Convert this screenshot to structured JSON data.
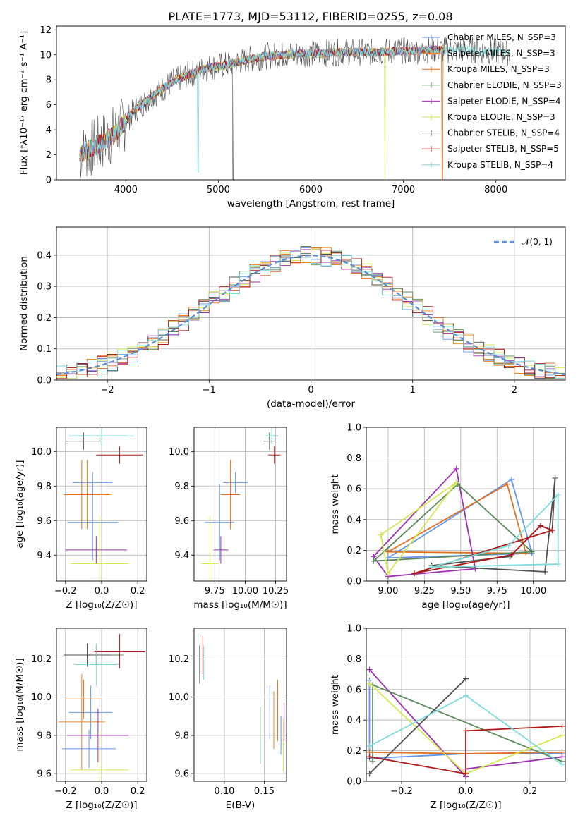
{
  "figure": {
    "title": "PLATE=1773, MJD=53112, FIBERID=0255, z=0.08"
  },
  "series_styles": [
    {
      "name": "Chabrier MILES, N_SSP=3",
      "color": "#6495ed"
    },
    {
      "name": "Salpeter MILES, N_SSP=3",
      "color": "#ff7f0e"
    },
    {
      "name": "Kroupa MILES, N_SSP=3",
      "color": "#e07020"
    },
    {
      "name": "Chabrier ELODIE, N_SSP=3",
      "color": "#5a8a5a"
    },
    {
      "name": "Salpeter ELODIE, N_SSP=4",
      "color": "#9b30b0"
    },
    {
      "name": "Kroupa ELODIE, N_SSP=3",
      "color": "#d4e850"
    },
    {
      "name": "Chabrier STELIB, N_SSP=4",
      "color": "#505050"
    },
    {
      "name": "Salpeter STELIB, N_SSP=5",
      "color": "#b01818"
    },
    {
      "name": "Kroupa STELIB, N_SSP=4",
      "color": "#7fdcdc"
    }
  ],
  "chart_data": [
    {
      "id": "spectrum",
      "type": "line",
      "title": "PLATE=1773, MJD=53112, FIBERID=0255, z=0.08",
      "xlabel": "wavelength [Angstrom, rest frame]",
      "ylabel": "Flux [fλ10⁻¹⁷ erg cm⁻² s⁻¹ A⁻¹]",
      "xlim": [
        3250,
        8750
      ],
      "ylim": [
        0,
        12.3
      ],
      "xticks": [
        "4000",
        "5000",
        "6000",
        "7000",
        "8000"
      ],
      "yticks": [
        "0",
        "2",
        "4",
        "6",
        "8",
        "10",
        "12"
      ],
      "legend_position": "top-right",
      "legend": [
        "Chabrier MILES, N_SSP=3",
        "Salpeter MILES, N_SSP=3",
        "Kroupa MILES, N_SSP=3",
        "Chabrier ELODIE, N_SSP=3",
        "Salpeter ELODIE, N_SSP=4",
        "Kroupa ELODIE, N_SSP=3",
        "Chabrier STELIB, N_SSP=4",
        "Salpeter STELIB, N_SSP=5",
        "Kroupa STELIB, N_SSP=4"
      ],
      "continuum_model": {
        "x": [
          3500,
          3700,
          3900,
          4100,
          4300,
          4500,
          4700,
          4900,
          5100,
          5300,
          5500,
          5700,
          5900,
          6100,
          6300,
          6500,
          6700,
          6900,
          7100,
          7300,
          7500,
          7700,
          7900,
          8100,
          8300
        ],
        "y": [
          2.0,
          2.8,
          3.8,
          5.6,
          6.8,
          7.8,
          8.5,
          9.0,
          9.2,
          9.6,
          9.9,
          10.0,
          10.1,
          10.1,
          10.2,
          10.2,
          10.2,
          10.3,
          10.3,
          10.4,
          10.4,
          10.4,
          10.3,
          10.2,
          10.1
        ]
      }
    },
    {
      "id": "residuals",
      "type": "histogram",
      "xlabel": "(data-model)/error",
      "ylabel": "Normed distribution",
      "xlim": [
        -2.5,
        2.5
      ],
      "ylim": [
        0,
        0.49
      ],
      "xticks": [
        "−2",
        "−1",
        "0",
        "1",
        "2"
      ],
      "yticks": [
        "0.0",
        "0.1",
        "0.2",
        "0.3",
        "0.4"
      ],
      "grid": true,
      "legend": [
        "𝒩(0, 1)"
      ],
      "legend_position": "top-right"
    },
    {
      "id": "age-vs-Z",
      "type": "errorbar",
      "xlabel": "Z [log₁₀(Z/Z☉)]",
      "ylabel": "age  [log₁₀(age/yr)]",
      "xlim": [
        -0.25,
        0.25
      ],
      "ylim": [
        9.25,
        10.14
      ],
      "xticks": [
        "−0.2",
        "0.0",
        "0.2"
      ],
      "yticks": [
        "9.4",
        "9.6",
        "9.8",
        "10.0"
      ],
      "points": [
        {
          "x": -0.05,
          "y": 9.82,
          "xerr": 0.11,
          "yerr": 0.06
        },
        {
          "x": -0.08,
          "y": 9.75,
          "xerr": 0.13,
          "yerr": 0.2
        },
        {
          "x": -0.11,
          "y": 9.75,
          "xerr": 0.1,
          "yerr": 0.2
        },
        {
          "x": -0.01,
          "y": 10.09,
          "xerr": 0.15,
          "yerr": 0.05
        },
        {
          "x": -0.03,
          "y": 9.43,
          "xerr": 0.17,
          "yerr": 0.08
        },
        {
          "x": -0.01,
          "y": 9.35,
          "xerr": 0.16,
          "yerr": 0.28
        },
        {
          "x": -0.1,
          "y": 10.06,
          "xerr": 0.1,
          "yerr": 0.05
        },
        {
          "x": 0.1,
          "y": 9.98,
          "xerr": 0.13,
          "yerr": 0.05
        },
        {
          "x": 0.0,
          "y": 10.09,
          "xerr": 0.18,
          "yerr": 0.05
        },
        {
          "x": -0.05,
          "y": 9.59,
          "xerr": 0.14,
          "yerr": 0.22
        }
      ]
    },
    {
      "id": "age-vs-mass",
      "type": "errorbar",
      "xlabel": "mass [log₁₀(M/M☉)]",
      "ylabel": "",
      "xlim": [
        9.58,
        10.34
      ],
      "ylim": [
        9.25,
        10.14
      ],
      "xticks": [
        "9.75",
        "10.00",
        "10.25"
      ],
      "yticks": [
        "9.4",
        "9.6",
        "9.8",
        "10.0"
      ],
      "points": [
        {
          "x": 9.92,
          "y": 9.82,
          "xerr": 0.1,
          "yerr": 0.06
        },
        {
          "x": 9.88,
          "y": 9.75,
          "xerr": 0.08,
          "yerr": 0.2
        },
        {
          "x": 9.88,
          "y": 9.75,
          "xerr": 0.07,
          "yerr": 0.2
        },
        {
          "x": 10.22,
          "y": 10.09,
          "xerr": 0.05,
          "yerr": 0.05
        },
        {
          "x": 9.8,
          "y": 9.43,
          "xerr": 0.06,
          "yerr": 0.08
        },
        {
          "x": 9.71,
          "y": 9.35,
          "xerr": 0.07,
          "yerr": 0.28
        },
        {
          "x": 10.2,
          "y": 10.06,
          "xerr": 0.05,
          "yerr": 0.05
        },
        {
          "x": 10.24,
          "y": 9.98,
          "xerr": 0.05,
          "yerr": 0.05
        },
        {
          "x": 10.22,
          "y": 10.09,
          "xerr": 0.04,
          "yerr": 0.05
        },
        {
          "x": 9.79,
          "y": 9.59,
          "xerr": 0.12,
          "yerr": 0.22
        }
      ]
    },
    {
      "id": "weight-vs-age",
      "type": "line",
      "xlabel": "age  [log₁₀(age/yr)]",
      "ylabel": "mass weight",
      "xlim": [
        8.85,
        10.22
      ],
      "ylim": [
        0,
        1.0
      ],
      "xticks": [
        "9.00",
        "9.25",
        "9.50",
        "9.75",
        "10.00"
      ],
      "yticks": [
        "0.0",
        "0.2",
        "0.4",
        "0.6",
        "0.8",
        "1.0"
      ],
      "grid": true,
      "series": [
        {
          "x": [
            9.0,
            9.85,
            9.99,
            9.0
          ],
          "y": [
            0.15,
            0.66,
            0.18,
            0.15
          ]
        },
        {
          "x": [
            9.0,
            9.82,
            9.95,
            9.0
          ],
          "y": [
            0.19,
            0.63,
            0.18,
            0.19
          ]
        },
        {
          "x": [
            8.9,
            9.47,
            9.6,
            9.0,
            8.9
          ],
          "y": [
            0.16,
            0.73,
            0.08,
            0.03,
            0.16
          ]
        },
        {
          "x": [
            8.9,
            9.48,
            9.99,
            8.9
          ],
          "y": [
            0.13,
            0.63,
            0.19,
            0.13
          ]
        },
        {
          "x": [
            8.95,
            9.0,
            9.47,
            8.95
          ],
          "y": [
            0.3,
            0.05,
            0.64,
            0.3
          ]
        },
        {
          "x": [
            9.3,
            9.84,
            10.05,
            10.13,
            10.15,
            10.08,
            9.3
          ],
          "y": [
            0.1,
            0.16,
            0.36,
            0.33,
            0.67,
            0.06,
            0.1
          ]
        },
        {
          "x": [
            9.18,
            9.85,
            10.05,
            10.13,
            9.18
          ],
          "y": [
            0.05,
            0.17,
            0.36,
            0.33,
            0.05
          ]
        },
        {
          "x": [
            9.3,
            9.83,
            10.17,
            10.17,
            9.3
          ],
          "y": [
            0.09,
            0.23,
            0.56,
            0.11,
            0.09
          ]
        }
      ]
    },
    {
      "id": "mass-vs-Z",
      "type": "errorbar",
      "xlabel": "Z [log₁₀(Z/Z☉)]",
      "ylabel": "mass [log₁₀(M/M☉)]",
      "xlim": [
        -0.25,
        0.25
      ],
      "ylim": [
        9.56,
        10.36
      ],
      "xticks": [
        "−0.2",
        "0.0",
        "0.2"
      ],
      "yticks": [
        "9.6",
        "9.8",
        "10.0",
        "10.2"
      ],
      "points": [
        {
          "x": -0.06,
          "y": 9.92,
          "xerr": 0.12,
          "yerr": 0.14
        },
        {
          "x": -0.11,
          "y": 9.87,
          "xerr": 0.13,
          "yerr": 0.25
        },
        {
          "x": -0.1,
          "y": 9.99,
          "xerr": 0.1,
          "yerr": 0.1
        },
        {
          "x": -0.03,
          "y": 10.22,
          "xerr": 0.15,
          "yerr": 0.05
        },
        {
          "x": -0.02,
          "y": 9.8,
          "xerr": 0.17,
          "yerr": 0.14
        },
        {
          "x": -0.01,
          "y": 9.62,
          "xerr": 0.16,
          "yerr": 0.2
        },
        {
          "x": -0.08,
          "y": 10.22,
          "xerr": 0.13,
          "yerr": 0.06
        },
        {
          "x": 0.1,
          "y": 10.24,
          "xerr": 0.14,
          "yerr": 0.09
        },
        {
          "x": -0.03,
          "y": 10.17,
          "xerr": 0.12,
          "yerr": 0.11
        },
        {
          "x": -0.07,
          "y": 9.73,
          "xerr": 0.15,
          "yerr": 0.1
        }
      ]
    },
    {
      "id": "mass-vs-ebv",
      "type": "errorbar",
      "xlabel": "E(B-V)",
      "ylabel": "",
      "xlim": [
        0.062,
        0.178
      ],
      "ylim": [
        9.56,
        10.36
      ],
      "xticks": [
        "0.10",
        "0.15"
      ],
      "yticks": [
        "9.6",
        "9.8",
        "10.0",
        "10.2"
      ],
      "points": [
        {
          "x": 0.157,
          "y": 9.92,
          "yerr": 0.14
        },
        {
          "x": 0.162,
          "y": 9.88,
          "yerr": 0.15
        },
        {
          "x": 0.167,
          "y": 9.93,
          "yerr": 0.16
        },
        {
          "x": 0.145,
          "y": 9.8,
          "yerr": 0.15
        },
        {
          "x": 0.175,
          "y": 9.87,
          "yerr": 0.1
        },
        {
          "x": 0.174,
          "y": 9.75,
          "yerr": 0.14
        },
        {
          "x": 0.069,
          "y": 10.17,
          "yerr": 0.1
        },
        {
          "x": 0.073,
          "y": 10.22,
          "yerr": 0.1
        },
        {
          "x": 0.074,
          "y": 10.18,
          "yerr": 0.09
        },
        {
          "x": 0.171,
          "y": 9.8,
          "yerr": 0.1
        }
      ]
    },
    {
      "id": "weight-vs-Z",
      "type": "line",
      "xlabel": "Z [log₁₀(Z/Z☉)]",
      "ylabel": "mass weight",
      "xlim": [
        -0.31,
        0.31
      ],
      "ylim": [
        0,
        1.0
      ],
      "xticks": [
        "−0.2",
        "0.0",
        "0.2"
      ],
      "yticks": [
        "0.0",
        "0.2",
        "0.4",
        "0.6",
        "0.8",
        "1.0"
      ],
      "grid": true,
      "series": [
        {
          "x": [
            -0.3,
            -0.3,
            0.0,
            0.3
          ],
          "y": [
            0.66,
            0.15,
            0.18,
            0.18
          ]
        },
        {
          "x": [
            -0.3,
            0.0,
            0.3
          ],
          "y": [
            0.19,
            0.18,
            0.19
          ]
        },
        {
          "x": [
            -0.3,
            0.0,
            0.0,
            0.3
          ],
          "y": [
            0.73,
            0.03,
            0.08,
            0.16
          ]
        },
        {
          "x": [
            -0.29,
            -0.29,
            0.3
          ],
          "y": [
            0.13,
            0.63,
            0.13
          ]
        },
        {
          "x": [
            -0.3,
            0.0,
            0.3
          ],
          "y": [
            0.64,
            0.05,
            0.3
          ]
        },
        {
          "x": [
            -0.3,
            0.0,
            -0.3
          ],
          "y": [
            0.05,
            0.67,
            0.05
          ]
        },
        {
          "x": [
            -0.3,
            0.0,
            0.0,
            0.3
          ],
          "y": [
            0.16,
            0.05,
            0.33,
            0.36
          ]
        },
        {
          "x": [
            -0.3,
            0.0,
            0.3
          ],
          "y": [
            0.23,
            0.56,
            0.11
          ]
        }
      ]
    }
  ]
}
